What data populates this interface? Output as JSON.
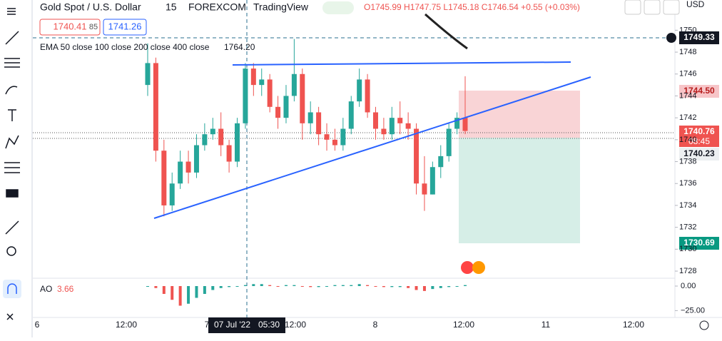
{
  "header": {
    "symbol": "Gold Spot / U.S. Dollar",
    "interval": "15",
    "exchange": "FOREXCOM",
    "source": "TradingView",
    "ohlc": "O1745.99 H1747.75 L1745.18 C1746.54 +0.55 (+0.03%)",
    "sell": "1740.41",
    "spread": "85",
    "buy": "1741.26",
    "indicator": "EMA 50 close 100 close 200 close 400 close",
    "indicator_value": "1764.20",
    "currency": "USD"
  },
  "price_tags": {
    "crosshair": "1749.33",
    "target": "1744.50",
    "last": "1740.76",
    "countdown": "08:45",
    "entry": "1740.23",
    "stop": "1730.69"
  },
  "crosshair_time": {
    "date": "07 Jul '22",
    "time": "05:30"
  },
  "time_labels": [
    "6",
    "12:00",
    "7",
    "12:00",
    "8",
    "12:00",
    "11",
    "12:00"
  ],
  "chart_data": {
    "type": "candlestick",
    "ylim": [
      1727.35,
      1750.48
    ],
    "yticks": [
      1728,
      1730,
      1732,
      1734,
      1736,
      1738,
      1740,
      1742,
      1744,
      1746,
      1748,
      1750
    ],
    "up_color": "#26a69a",
    "down_color": "#ef5350",
    "open": [
      1745,
      1747,
      1739,
      1734,
      1736,
      1738,
      1737,
      1739.5,
      1740.5,
      1741,
      1739.5,
      1738,
      1741.5,
      1746.5,
      1745,
      1745.5,
      1743,
      1742,
      1744,
      1746,
      1741.5,
      1742.5,
      1740.5,
      1740,
      1739.5,
      1741,
      1743.5,
      1745.5,
      1742.5,
      1741,
      1740.5,
      1742,
      1741.5,
      1741,
      1736,
      1735,
      1737.5,
      1738.5,
      1741,
      1742
    ],
    "high": [
      1748.8,
      1747.5,
      1740,
      1737,
      1739,
      1739,
      1740.5,
      1741.5,
      1742,
      1742.5,
      1740,
      1742,
      1747,
      1747,
      1746.5,
      1746,
      1744,
      1745,
      1749.2,
      1746.5,
      1743.5,
      1743,
      1741.5,
      1741,
      1742,
      1744,
      1746.5,
      1746,
      1743,
      1742,
      1743,
      1743.5,
      1742.5,
      1741.5,
      1738.5,
      1738,
      1739.5,
      1741.5,
      1742.5,
      1745.8
    ],
    "low": [
      1744,
      1738,
      1733,
      1733.5,
      1735.5,
      1736,
      1736.5,
      1739,
      1740,
      1738.5,
      1737,
      1737.5,
      1741,
      1744,
      1744,
      1742.5,
      1741,
      1741.5,
      1743.5,
      1740,
      1740.5,
      1739.5,
      1739,
      1739,
      1739,
      1740.5,
      1743,
      1742,
      1740,
      1740,
      1740,
      1740.5,
      1740,
      1735,
      1733.5,
      1735,
      1736.5,
      1738,
      1740.5,
      1740.5
    ],
    "close": [
      1747,
      1739,
      1734,
      1736,
      1738,
      1737,
      1739.5,
      1740.5,
      1741,
      1739.5,
      1738,
      1741.5,
      1746.5,
      1745,
      1745.5,
      1743,
      1742,
      1744,
      1746,
      1741.5,
      1742.5,
      1740.5,
      1740,
      1739.5,
      1741,
      1743.5,
      1745.5,
      1742.5,
      1741,
      1740.5,
      1742,
      1741.5,
      1741,
      1736,
      1735,
      1737.5,
      1738.5,
      1741,
      1742,
      1740.8
    ]
  },
  "ao": {
    "name": "AO",
    "value_label": "3.66",
    "ylim": [
      -32,
      8
    ],
    "yticks": [
      {
        "value": 0,
        "label": "0.00"
      },
      {
        "value": -25,
        "label": "−25.00"
      }
    ],
    "values": [
      0,
      -2,
      -8,
      -14,
      -20,
      -18,
      -12,
      -8,
      -4,
      -2,
      -1,
      0,
      1,
      2,
      2,
      1,
      0,
      1,
      1,
      0,
      -1,
      -1,
      0,
      1,
      1,
      1,
      2,
      1,
      0,
      -1,
      -1,
      -1,
      -2,
      -4,
      -5,
      -3,
      -2,
      -1,
      0,
      1
    ]
  }
}
